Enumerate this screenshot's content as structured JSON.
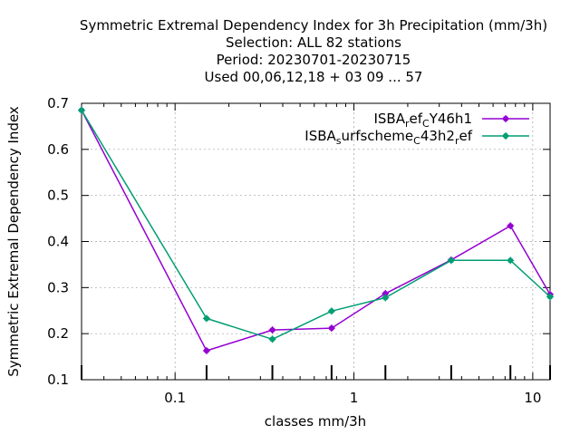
{
  "chart_data": {
    "type": "line",
    "title_lines": [
      "Symmetric Extremal Dependency Index  for 3h Precipitation (mm/3h)",
      "Selection: ALL     82 stations",
      "Period: 20230701-20230715",
      "Used  00,06,12,18 + 03 09 ... 57"
    ],
    "xlabel": "classes mm/3h",
    "ylabel": "Symmetric Extremal Dependency Index",
    "xscale": "log",
    "xlim": [
      0.03,
      12.5
    ],
    "ylim": [
      0.1,
      0.7
    ],
    "xticks": [
      {
        "value": 0.1,
        "label": "0.1"
      },
      {
        "value": 1,
        "label": "1"
      },
      {
        "value": 10,
        "label": "10"
      }
    ],
    "yticks": [
      {
        "value": 0.1,
        "label": "0.1"
      },
      {
        "value": 0.2,
        "label": "0.2"
      },
      {
        "value": 0.3,
        "label": "0.3"
      },
      {
        "value": 0.4,
        "label": "0.4"
      },
      {
        "value": 0.5,
        "label": "0.5"
      },
      {
        "value": 0.6,
        "label": "0.6"
      },
      {
        "value": 0.7,
        "label": "0.7"
      }
    ],
    "grid": true,
    "legend_position": "top-right",
    "x": [
      0.03,
      0.15,
      0.35,
      0.75,
      1.5,
      3.5,
      7.5,
      12.5
    ],
    "series": [
      {
        "name": "ISBA_ref_CY46h1",
        "legend_parts": [
          {
            "text": "ISBA",
            "shift": 0
          },
          {
            "text": "r",
            "shift": 1
          },
          {
            "text": "ef",
            "shift": 0
          },
          {
            "text": "C",
            "shift": 1
          },
          {
            "text": "Y46h1",
            "shift": 0
          }
        ],
        "color": "#9400d3",
        "values": [
          0.685,
          0.163,
          0.208,
          0.212,
          0.287,
          0.36,
          0.434,
          0.285
        ]
      },
      {
        "name": "ISBA_surfscheme_C43h2_ref",
        "legend_parts": [
          {
            "text": "ISBA",
            "shift": 0
          },
          {
            "text": "s",
            "shift": 1
          },
          {
            "text": "urfscheme",
            "shift": 0
          },
          {
            "text": "C",
            "shift": 1
          },
          {
            "text": "43h2",
            "shift": 0
          },
          {
            "text": "r",
            "shift": 1
          },
          {
            "text": "ef",
            "shift": 0
          }
        ],
        "color": "#009e73",
        "values": [
          0.685,
          0.233,
          0.188,
          0.249,
          0.278,
          0.359,
          0.359,
          0.28
        ]
      }
    ]
  }
}
